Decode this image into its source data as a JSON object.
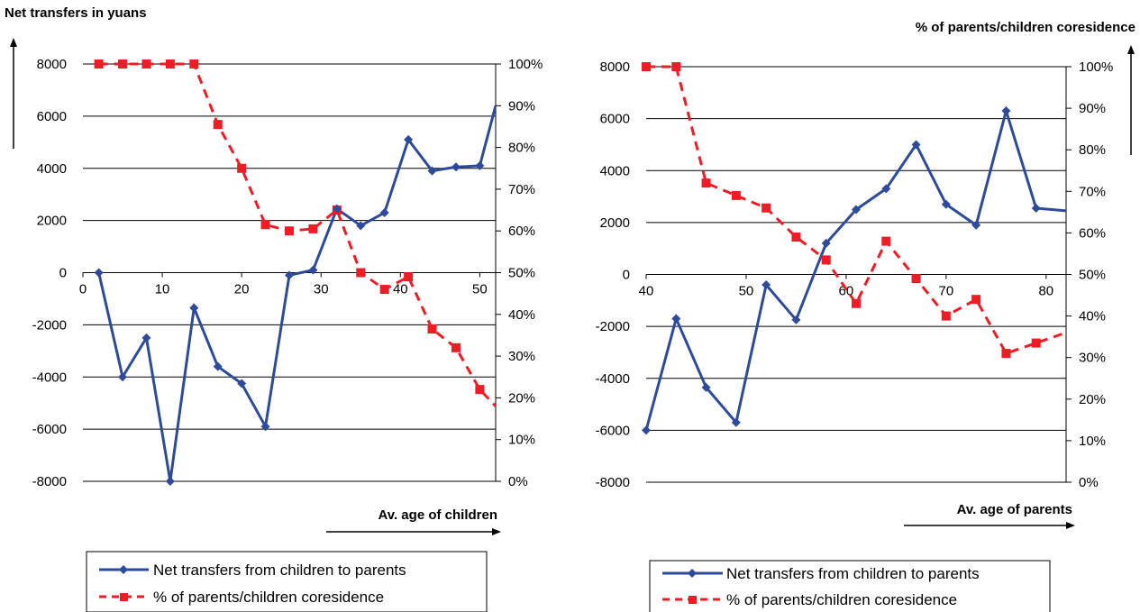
{
  "colors": {
    "transfers": "#2e4a9a",
    "coresidence": "#ee1c25"
  },
  "chart_data": [
    {
      "type": "line",
      "left_axis_title": "Net transfers in yuans",
      "xlabel": "Av. age of children",
      "xlim": [
        0,
        52
      ],
      "x_ticks": [
        "0",
        "10",
        "20",
        "30",
        "40",
        "50"
      ],
      "ylim_left": [
        -8000,
        8000
      ],
      "ylim_right": [
        0,
        100
      ],
      "y_ticks_left": [
        "8000",
        "6000",
        "4000",
        "2000",
        "0",
        "-2000",
        "-4000",
        "-6000",
        "-8000"
      ],
      "y_ticks_right": [
        "100%",
        "90%",
        "80%",
        "70%",
        "60%",
        "50%",
        "40%",
        "30%",
        "20%",
        "10%",
        "0%"
      ],
      "grid": "horizontal",
      "legend_position": "bottom",
      "series": [
        {
          "name": "Net transfers from children to parents",
          "axis": "left",
          "x": [
            2,
            5,
            8,
            11,
            14,
            17,
            20,
            23,
            26,
            29,
            32,
            35,
            38,
            41,
            44,
            47,
            50,
            52
          ],
          "y": [
            0,
            -4000,
            -2500,
            -8000,
            -1350,
            -3600,
            -4250,
            -5900,
            -100,
            100,
            2450,
            1800,
            2300,
            5100,
            3900,
            4050,
            4100,
            6400
          ]
        },
        {
          "name": "% of parents/children coresidence",
          "axis": "right",
          "x": [
            2,
            5,
            8,
            11,
            14,
            17,
            20,
            23,
            26,
            29,
            32,
            35,
            38,
            41,
            44,
            47,
            50,
            52
          ],
          "y": [
            100,
            100,
            100,
            100,
            100,
            85.5,
            75,
            61.5,
            60,
            60.5,
            65,
            50,
            46,
            49,
            36.5,
            32,
            22,
            18
          ]
        }
      ]
    },
    {
      "type": "line",
      "right_axis_title": "% of parents/children coresidence",
      "xlabel": "Av. age of parents",
      "xlim": [
        40,
        82
      ],
      "x_ticks": [
        "40",
        "50",
        "60",
        "70",
        "80"
      ],
      "ylim_left": [
        -8000,
        8000
      ],
      "ylim_right": [
        0,
        100
      ],
      "y_ticks_left": [
        "8000",
        "6000",
        "4000",
        "2000",
        "0",
        "-2000",
        "-4000",
        "-6000",
        "-8000"
      ],
      "y_ticks_right": [
        "100%",
        "90%",
        "80%",
        "70%",
        "60%",
        "50%",
        "40%",
        "30%",
        "20%",
        "10%",
        "0%"
      ],
      "grid": "horizontal",
      "legend_position": "bottom",
      "series": [
        {
          "name": "Net transfers from children to parents",
          "axis": "left",
          "x": [
            40,
            43,
            46,
            49,
            52,
            55,
            58,
            61,
            64,
            67,
            70,
            73,
            76,
            79,
            82
          ],
          "y": [
            -6000,
            -1700,
            -4350,
            -5700,
            -400,
            -1750,
            1200,
            2500,
            3300,
            5000,
            2700,
            1900,
            6300,
            2550,
            2450
          ]
        },
        {
          "name": "% of parents/children coresidence",
          "axis": "right",
          "x": [
            40,
            43,
            46,
            49,
            52,
            55,
            58,
            61,
            64,
            67,
            70,
            73,
            76,
            79,
            82
          ],
          "y": [
            100,
            100,
            72,
            69,
            66,
            59,
            53.5,
            43,
            58,
            49,
            40,
            44,
            31,
            33.5,
            36
          ]
        }
      ]
    }
  ]
}
